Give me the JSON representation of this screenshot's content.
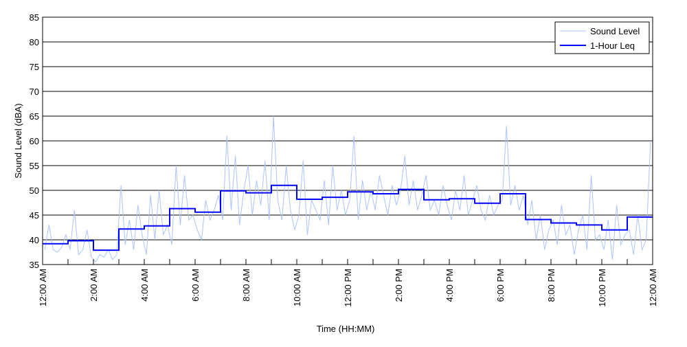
{
  "chart_data": {
    "type": "line",
    "xlabel": "Time (HH:MM)",
    "ylabel": "Sound Level (dBA)",
    "ylim": [
      35,
      85
    ],
    "yticks": [
      "35",
      "40",
      "45",
      "50",
      "55",
      "60",
      "65",
      "70",
      "75",
      "80",
      "85"
    ],
    "xlim_hours": [
      0,
      24
    ],
    "xtick_labels": [
      "12:00 AM",
      "2:00 AM",
      "4:00 AM",
      "6:00 AM",
      "8:00 AM",
      "10:00 AM",
      "12:00 PM",
      "2:00 PM",
      "4:00 PM",
      "6:00 PM",
      "8:00 PM",
      "10:00 PM",
      "12:00 AM"
    ],
    "grid": "horizontal",
    "legend_position": "top-right",
    "series": [
      {
        "name": "Sound Level",
        "color": "#aac4ff",
        "sample_interval_minutes": 10,
        "values": [
          38,
          43,
          38,
          37.5,
          38.5,
          41,
          38,
          46,
          37,
          38,
          42,
          36.5,
          35.5,
          37,
          36.5,
          38,
          36,
          37,
          51,
          39,
          44,
          38,
          47,
          41,
          37,
          49,
          40,
          50,
          41,
          43,
          39,
          55,
          43,
          53,
          44,
          45,
          42,
          40,
          48,
          44,
          46,
          49,
          44,
          61,
          46,
          57,
          43,
          50,
          55,
          45,
          52,
          47,
          56,
          44,
          65,
          48,
          44,
          55,
          46,
          42,
          45,
          56,
          41,
          48,
          46,
          44,
          52,
          43,
          55,
          46,
          50,
          45,
          48,
          61,
          44,
          52,
          46,
          50,
          46,
          53,
          49,
          45,
          51,
          47,
          50,
          57,
          47,
          52,
          46,
          49,
          53,
          46,
          48,
          45,
          51,
          47,
          44,
          50,
          46,
          53,
          45,
          48,
          51,
          46,
          44,
          49,
          45,
          47,
          48,
          63,
          47,
          51,
          46,
          49,
          43,
          48,
          40,
          45,
          38,
          42,
          44,
          39,
          47,
          41,
          43,
          37,
          42,
          45,
          38,
          53,
          40,
          41,
          38,
          44,
          36,
          47,
          39,
          41,
          42,
          37,
          45,
          38,
          40,
          60
        ]
      },
      {
        "name": "1-Hour Leq",
        "color": "#0000ff",
        "step": "hourly",
        "values": [
          39.2,
          39.8,
          37.9,
          42.2,
          42.8,
          46.3,
          45.6,
          49.9,
          49.5,
          51.0,
          48.2,
          48.6,
          49.7,
          49.3,
          50.2,
          48.1,
          48.3,
          47.4,
          49.3,
          44.1,
          43.4,
          43.0,
          42.0,
          44.6
        ]
      }
    ]
  }
}
